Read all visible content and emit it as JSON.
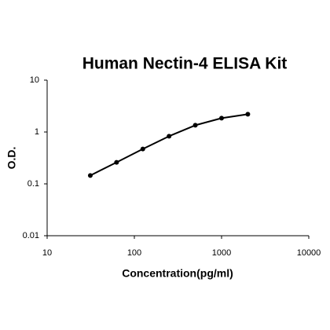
{
  "chart_data": {
    "type": "line",
    "title": "Human Nectin-4 ELISA Kit",
    "x_label": "Concentration(pg/ml)",
    "y_label": "O.D.",
    "x": [
      31.25,
      62.5,
      125,
      250,
      500,
      1000,
      2000
    ],
    "series": [
      {
        "color": "#000000",
        "values": [
          0.145,
          0.26,
          0.47,
          0.83,
          1.35,
          1.85,
          2.2
        ]
      }
    ],
    "x_log": true,
    "y_log": true,
    "xlim": [
      10,
      10000
    ],
    "xticks": [
      10,
      100,
      1000,
      10000
    ],
    "ylim": [
      0.01,
      10
    ],
    "yticks": [
      0.01,
      0.1,
      1,
      10
    ],
    "grid": false
  }
}
